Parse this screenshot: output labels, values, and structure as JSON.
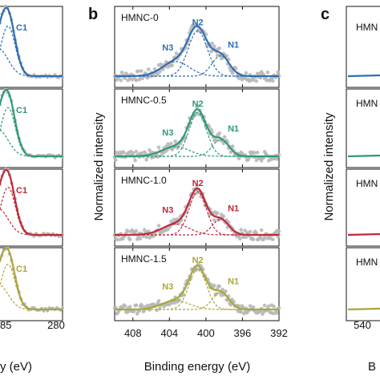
{
  "panels": {
    "a": {
      "xlabel_fragment": "y (eV)",
      "tick_labels": [
        "85",
        "280"
      ],
      "peak_label": "C1"
    },
    "b": {
      "letter": "b"
    },
    "c": {
      "letter": "c",
      "xlabel_fragment": "B",
      "tick_labels": [
        "540"
      ],
      "sample_fragment": "HMN"
    }
  },
  "colors": {
    "HMNC-0": "#2f6db5",
    "HMNC-0.5": "#2e9a73",
    "HMNC-1.0": "#c0283a",
    "HMNC-1.5": "#aaa63a",
    "raw_points": "#b8b8b8"
  },
  "chart_data": {
    "type": "line",
    "xlabel": "Binding energy (eV)",
    "ylabel": "Normalized intensity",
    "x_ticks": [
      408,
      404,
      400,
      396,
      392
    ],
    "x_tick_labels": [
      "408",
      "404",
      "400",
      "396",
      "392"
    ],
    "xlim": [
      410,
      392
    ],
    "x_reversed": true,
    "grid": false,
    "legend": "none",
    "series": [
      {
        "name": "HMNC-0",
        "peaks": [
          {
            "label": "N3",
            "center": 403.3,
            "height": 0.32,
            "sigma": 1.5
          },
          {
            "label": "N2",
            "center": 400.9,
            "height": 1.0,
            "sigma": 1.05
          },
          {
            "label": "N1",
            "center": 398.4,
            "height": 0.45,
            "sigma": 0.95
          }
        ]
      },
      {
        "name": "HMNC-0.5",
        "peaks": [
          {
            "label": "N3",
            "center": 403.3,
            "height": 0.22,
            "sigma": 1.5
          },
          {
            "label": "N2",
            "center": 400.9,
            "height": 1.0,
            "sigma": 0.95
          },
          {
            "label": "N1",
            "center": 398.4,
            "height": 0.38,
            "sigma": 0.9
          }
        ]
      },
      {
        "name": "HMNC-1.0",
        "peaks": [
          {
            "label": "N3",
            "center": 403.3,
            "height": 0.25,
            "sigma": 1.5
          },
          {
            "label": "N2",
            "center": 400.9,
            "height": 1.0,
            "sigma": 0.95
          },
          {
            "label": "N1",
            "center": 398.4,
            "height": 0.36,
            "sigma": 0.9
          }
        ]
      },
      {
        "name": "HMNC-1.5",
        "peaks": [
          {
            "label": "N3",
            "center": 403.3,
            "height": 0.22,
            "sigma": 1.5
          },
          {
            "label": "N2",
            "center": 400.9,
            "height": 1.0,
            "sigma": 0.95
          },
          {
            "label": "N1",
            "center": 398.4,
            "height": 0.42,
            "sigma": 0.9
          }
        ]
      }
    ]
  }
}
